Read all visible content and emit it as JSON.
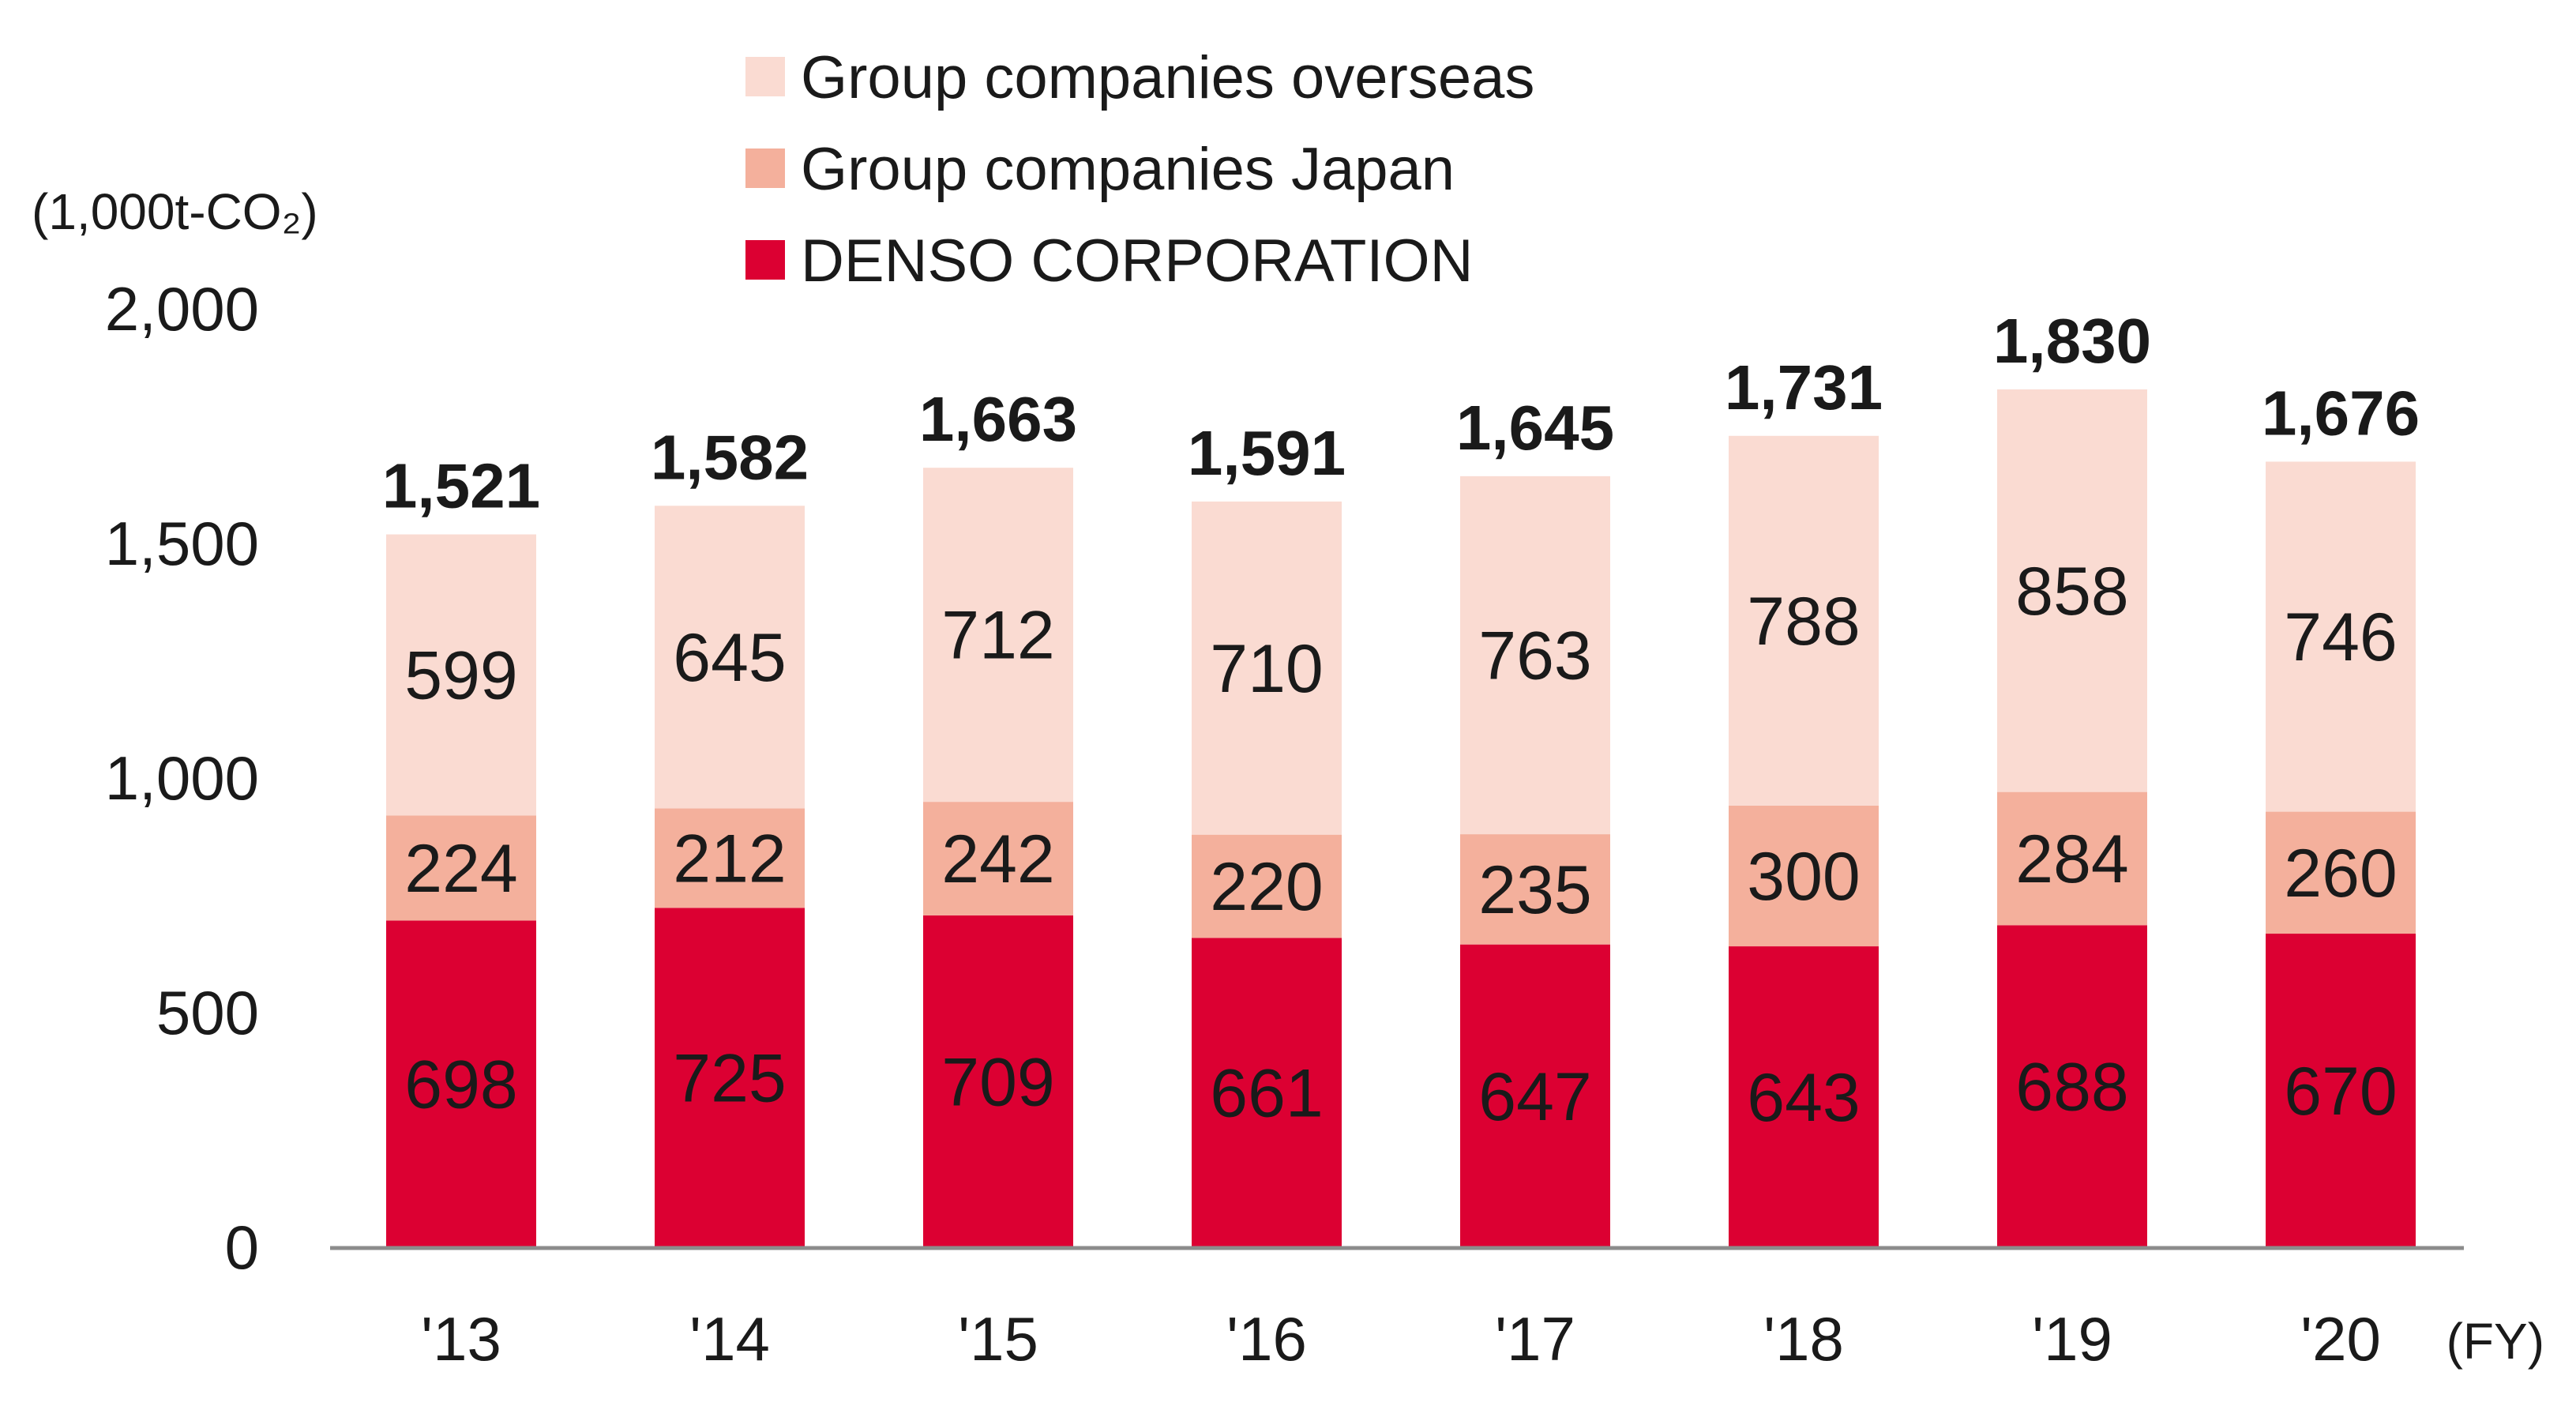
{
  "chart_data": {
    "type": "bar",
    "stacked": true,
    "unit_label": "(1,000t-CO₂)",
    "x_suffix": "(FY)",
    "categories": [
      "'13",
      "'14",
      "'15",
      "'16",
      "'17",
      "'18",
      "'19",
      "'20"
    ],
    "series": [
      {
        "name": "DENSO CORPORATION",
        "color": "#dc0032",
        "values": [
          698,
          725,
          709,
          661,
          647,
          643,
          688,
          670
        ]
      },
      {
        "name": "Group companies Japan",
        "color": "#f4b09c",
        "values": [
          224,
          212,
          242,
          220,
          235,
          300,
          284,
          260
        ]
      },
      {
        "name": "Group companies overseas",
        "color": "#fadbd2",
        "values": [
          599,
          645,
          712,
          710,
          763,
          788,
          858,
          746
        ]
      }
    ],
    "totals": [
      1521,
      1582,
      1663,
      1591,
      1645,
      1731,
      1830,
      1676
    ],
    "totals_labels": [
      "1,521",
      "1,582",
      "1,663",
      "1,591",
      "1,645",
      "1,731",
      "1,830",
      "1,676"
    ],
    "legend_order": [
      "Group companies overseas",
      "Group companies Japan",
      "DENSO CORPORATION"
    ],
    "ylim": [
      0,
      2000
    ],
    "yticks": [
      0,
      500,
      1000,
      1500,
      2000
    ],
    "ytick_labels": [
      "0",
      "500",
      "1,000",
      "1,500",
      "2,000"
    ],
    "axis_color": "#8c8c8c"
  }
}
